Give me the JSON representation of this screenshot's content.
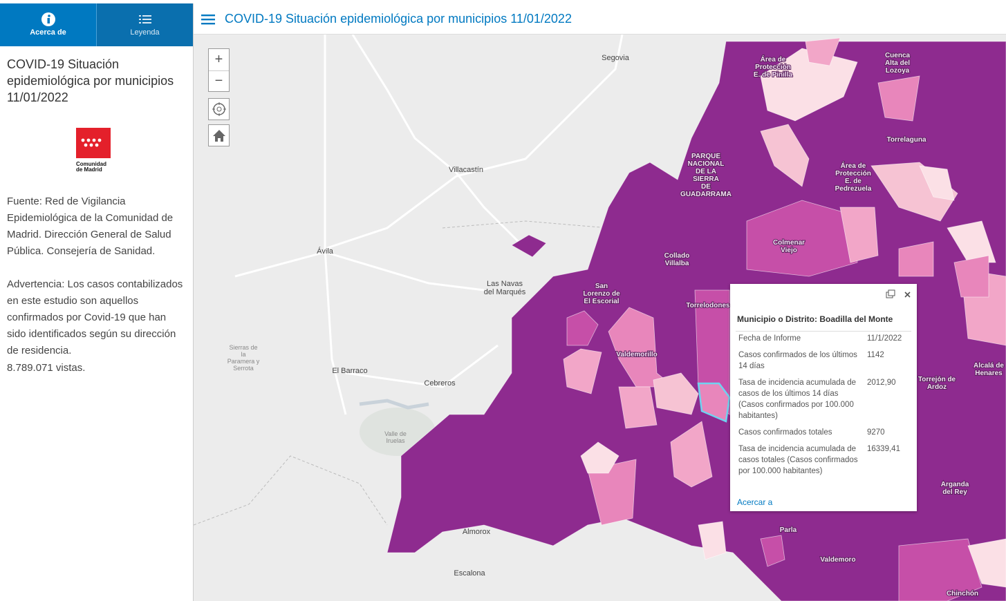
{
  "sidebar": {
    "tabs": [
      "Acerca de",
      "Leyenda"
    ],
    "title": "COVID-19 Situación epidemiológica por municipios 11/01/2022",
    "logo_text": [
      "Comunidad",
      "de Madrid"
    ],
    "paragraphs": [
      "Fuente: Red de Vigilancia Epidemiológica de la Comunidad de Madrid. Dirección General de Salud Pública. Consejería de Sanidad.",
      "Advertencia: Los casos contabilizados en este estudio son aquellos confirmados por Covid-19 que han sido identificados según su dirección de residencia."
    ],
    "views": "8.789.071 vistas."
  },
  "header": {
    "title": "COVID-19 Situación epidemiológica por municipios 11/01/2022"
  },
  "map": {
    "controls": [
      "+",
      "−"
    ],
    "labels": [
      {
        "lines": [
          "Segovia"
        ]
      },
      {
        "lines": [
          "Villacastín"
        ]
      },
      {
        "lines": [
          "Ávila"
        ]
      },
      {
        "lines": [
          "Las Navas",
          "del Marqués"
        ]
      },
      {
        "lines": [
          "Sierras de",
          "la",
          "Paramera y",
          "Serrota"
        ]
      },
      {
        "lines": [
          "El Barraco"
        ]
      },
      {
        "lines": [
          "Cebreros"
        ]
      },
      {
        "lines": [
          "Valle de",
          "Iruelas"
        ]
      },
      {
        "lines": [
          "Almorox"
        ]
      },
      {
        "lines": [
          "Escalona"
        ]
      },
      {
        "lines": [
          "San",
          "Lorenzo de",
          "El Escorial"
        ]
      },
      {
        "lines": [
          "Collado",
          "Villalba"
        ]
      },
      {
        "lines": [
          "Torrelodones"
        ]
      },
      {
        "lines": [
          "Valdemorillo"
        ]
      },
      {
        "lines": [
          "Colmenar",
          "Viejo"
        ]
      },
      {
        "lines": [
          "PARQUE",
          "NACIONAL",
          "DE LA",
          "SIERRA",
          "DE",
          "GUADARRAMA"
        ]
      },
      {
        "lines": [
          "Área de",
          "Protección",
          "E. de Pinilla"
        ]
      },
      {
        "lines": [
          "Cuenca",
          "Alta del",
          "Lozoya"
        ]
      },
      {
        "lines": [
          "Torrelaguna"
        ]
      },
      {
        "lines": [
          "Área de",
          "Protección",
          "E. de",
          "Pedrezuela"
        ]
      },
      {
        "lines": [
          "Alcalá de",
          "Henares"
        ]
      },
      {
        "lines": [
          "Torrejón de",
          "Ardoz"
        ]
      },
      {
        "lines": [
          "Arganda",
          "del Rey"
        ]
      },
      {
        "lines": [
          "Parla"
        ]
      },
      {
        "lines": [
          "Valdemoro"
        ]
      },
      {
        "lines": [
          "Chinchón"
        ]
      }
    ]
  },
  "popup": {
    "title": "Municipio o Distrito: Boadilla del Monte",
    "rows": [
      [
        "Fecha de Informe",
        "11/1/2022"
      ],
      [
        "Casos confirmados de los últimos 14 días",
        "1142"
      ],
      [
        "Tasa de incidencia acumulada de casos de los últimos 14 días (Casos confirmados por 100.000 habitantes)",
        "2012,90"
      ],
      [
        "Casos confirmados totales",
        "9270"
      ],
      [
        "Tasa de incidencia acumulada de casos totales (Casos confirmados por 100.000 habitantes)",
        "16339,41"
      ]
    ],
    "link": "Acercar a"
  }
}
